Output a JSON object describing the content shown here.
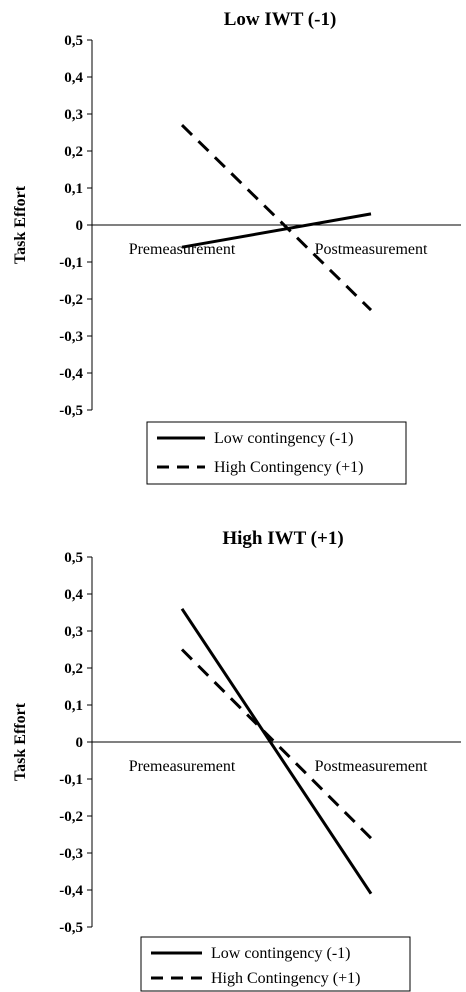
{
  "chart_data": [
    {
      "type": "line",
      "title": "Low IWT (-1)",
      "xlabel": "",
      "ylabel": "Task Effort",
      "categories": [
        "Premeasurement",
        "Postmeasurement"
      ],
      "yticks": [
        "0,5",
        "0,4",
        "0,3",
        "0,2",
        "0,1",
        "0",
        "-0,1",
        "-0,2",
        "-0,3",
        "-0,4",
        "-0,5"
      ],
      "ylim": [
        -0.5,
        0.5
      ],
      "grid": false,
      "legend_position": "bottom",
      "series": [
        {
          "name": "Low contingency (-1)",
          "style": "solid",
          "values": [
            -0.06,
            0.03
          ]
        },
        {
          "name": "High Contingency (+1)",
          "style": "dashed",
          "values": [
            0.27,
            -0.23
          ]
        }
      ]
    },
    {
      "type": "line",
      "title": "High IWT (+1)",
      "xlabel": "",
      "ylabel": "Task Effort",
      "categories": [
        "Premeasurement",
        "Postmeasurement"
      ],
      "yticks": [
        "0,5",
        "0,4",
        "0,3",
        "0,2",
        "0,1",
        "0",
        "-0,1",
        "-0,2",
        "-0,3",
        "-0,4",
        "-0,5"
      ],
      "ylim": [
        -0.5,
        0.5
      ],
      "grid": false,
      "legend_position": "bottom",
      "series": [
        {
          "name": "Low contingency (-1)",
          "style": "solid",
          "values": [
            0.36,
            -0.41
          ]
        },
        {
          "name": "High Contingency (+1)",
          "style": "dashed",
          "values": [
            0.25,
            -0.26
          ]
        }
      ]
    }
  ]
}
